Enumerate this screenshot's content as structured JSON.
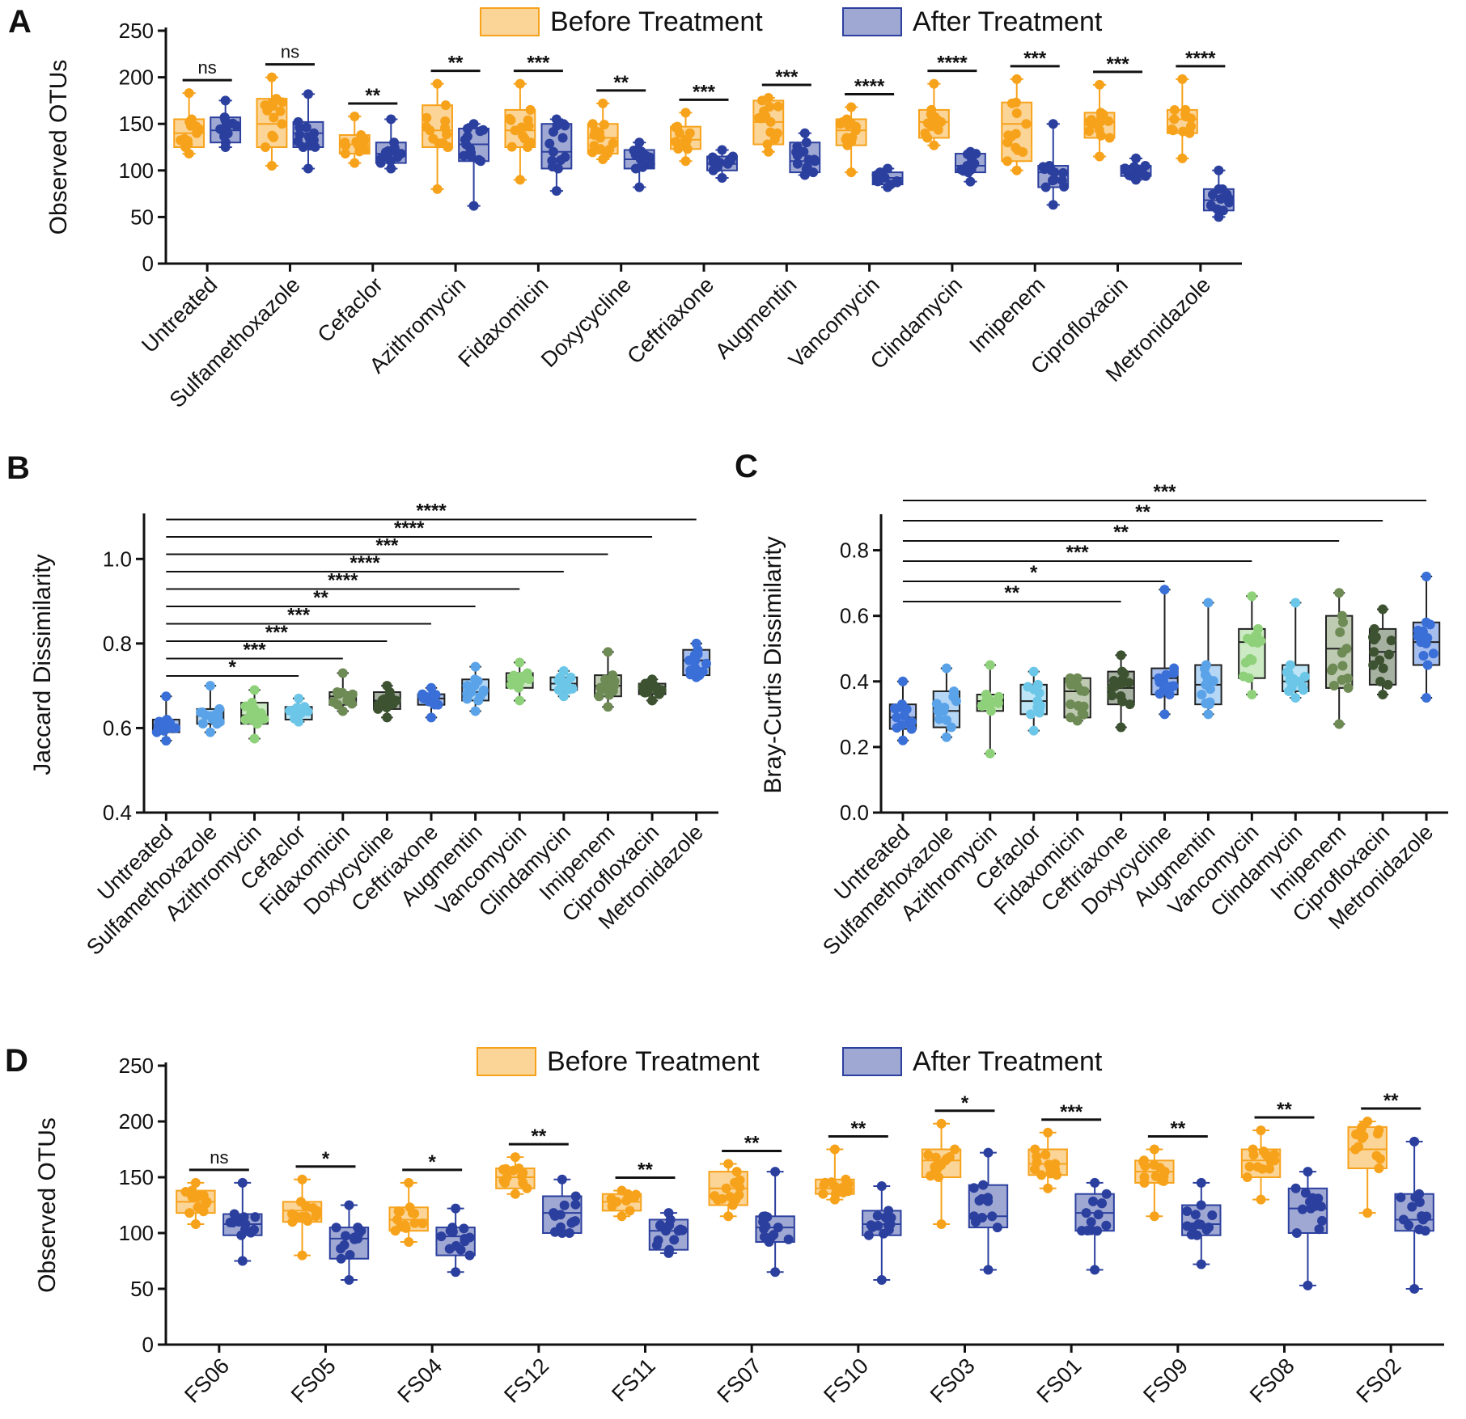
{
  "chart_data": [
    {
      "panel": "A",
      "type": "box",
      "ylabel": "Observed OTUs",
      "ylim": [
        0,
        250
      ],
      "yticks": [
        0,
        50,
        100,
        150,
        200,
        250
      ],
      "legend": {
        "placement": "top",
        "entries": [
          "Before Treatment",
          "After Treatment"
        ]
      },
      "colors": {
        "Before Treatment": "#F7A21B",
        "After Treatment": "#2B3F9E"
      },
      "categories": [
        "Untreated",
        "Sulfamethoxazole",
        "Cefaclor",
        "Azithromycin",
        "Fidaxomicin",
        "Doxycycline",
        "Ceftriaxone",
        "Augmentin",
        "Vancomycin",
        "Clindamycin",
        "Imipenem",
        "Ciprofloxacin",
        "Metronidazole"
      ],
      "significance": [
        "ns",
        "ns",
        "**",
        "**",
        "***",
        "**",
        "***",
        "***",
        "****",
        "****",
        "***",
        "***",
        "****"
      ],
      "series": [
        {
          "name": "Before Treatment",
          "boxes": [
            {
              "min": 118,
              "q1": 125,
              "median": 140,
              "q3": 155,
              "max": 183
            },
            {
              "min": 105,
              "q1": 125,
              "median": 150,
              "q3": 177,
              "max": 200
            },
            {
              "min": 108,
              "q1": 118,
              "median": 128,
              "q3": 138,
              "max": 158
            },
            {
              "min": 80,
              "q1": 125,
              "median": 143,
              "q3": 170,
              "max": 193
            },
            {
              "min": 90,
              "q1": 125,
              "median": 143,
              "q3": 165,
              "max": 193
            },
            {
              "min": 112,
              "q1": 118,
              "median": 135,
              "q3": 150,
              "max": 172
            },
            {
              "min": 110,
              "q1": 123,
              "median": 133,
              "q3": 147,
              "max": 162
            },
            {
              "min": 120,
              "q1": 128,
              "median": 152,
              "q3": 175,
              "max": 178
            },
            {
              "min": 98,
              "q1": 127,
              "median": 143,
              "q3": 155,
              "max": 168
            },
            {
              "min": 127,
              "q1": 135,
              "median": 152,
              "q3": 165,
              "max": 193
            },
            {
              "min": 100,
              "q1": 110,
              "median": 150,
              "q3": 173,
              "max": 198
            },
            {
              "min": 115,
              "q1": 135,
              "median": 152,
              "q3": 162,
              "max": 192
            },
            {
              "min": 113,
              "q1": 140,
              "median": 155,
              "q3": 165,
              "max": 198
            }
          ]
        },
        {
          "name": "After Treatment",
          "boxes": [
            {
              "min": 125,
              "q1": 130,
              "median": 143,
              "q3": 157,
              "max": 175
            },
            {
              "min": 102,
              "q1": 125,
              "median": 140,
              "q3": 152,
              "max": 182
            },
            {
              "min": 102,
              "q1": 108,
              "median": 118,
              "q3": 130,
              "max": 155
            },
            {
              "min": 62,
              "q1": 110,
              "median": 128,
              "q3": 145,
              "max": 150
            },
            {
              "min": 78,
              "q1": 102,
              "median": 120,
              "q3": 150,
              "max": 155
            },
            {
              "min": 82,
              "q1": 102,
              "median": 112,
              "q3": 122,
              "max": 130
            },
            {
              "min": 92,
              "q1": 100,
              "median": 107,
              "q3": 115,
              "max": 122
            },
            {
              "min": 95,
              "q1": 98,
              "median": 110,
              "q3": 130,
              "max": 140
            },
            {
              "min": 82,
              "q1": 85,
              "median": 92,
              "q3": 98,
              "max": 102
            },
            {
              "min": 88,
              "q1": 98,
              "median": 105,
              "q3": 118,
              "max": 120
            },
            {
              "min": 63,
              "q1": 82,
              "median": 98,
              "q3": 105,
              "max": 150
            },
            {
              "min": 90,
              "q1": 94,
              "median": 97,
              "q3": 105,
              "max": 113
            },
            {
              "min": 50,
              "q1": 57,
              "median": 68,
              "q3": 80,
              "max": 100
            }
          ]
        }
      ]
    },
    {
      "panel": "B",
      "type": "box",
      "ylabel": "Jaccard Dissimilarity",
      "ylim": [
        0.4,
        1.1
      ],
      "yticks": [
        0.4,
        0.6,
        0.8,
        1.0
      ],
      "ytick_labels": [
        "0.4",
        "0.6",
        "0.8",
        "1.0"
      ],
      "categories": [
        "Untreated",
        "Sulfamethoxazole",
        "Azithromycin",
        "Cefaclor",
        "Fidaxomicin",
        "Doxycycline",
        "Ceftriaxone",
        "Augmentin",
        "Vancomycin",
        "Clindamycin",
        "Imipenem",
        "Ciprofloxacin",
        "Metronidazole"
      ],
      "colors": [
        "#3A6FD8",
        "#5BA3E8",
        "#8FD17A",
        "#6CC6E8",
        "#6E8A55",
        "#3C5230",
        "#3A6FD8",
        "#5BA3E8",
        "#8FD17A",
        "#6CC6E8",
        "#6E8A55",
        "#3C5230",
        "#3A6FD8"
      ],
      "boxes": [
        {
          "min": 0.57,
          "q1": 0.59,
          "median": 0.605,
          "q3": 0.62,
          "max": 0.675
        },
        {
          "min": 0.59,
          "q1": 0.61,
          "median": 0.63,
          "q3": 0.645,
          "max": 0.7
        },
        {
          "min": 0.575,
          "q1": 0.61,
          "median": 0.63,
          "q3": 0.66,
          "max": 0.69
        },
        {
          "min": 0.615,
          "q1": 0.62,
          "median": 0.635,
          "q3": 0.65,
          "max": 0.67
        },
        {
          "min": 0.64,
          "q1": 0.655,
          "median": 0.675,
          "q3": 0.685,
          "max": 0.73
        },
        {
          "min": 0.625,
          "q1": 0.645,
          "median": 0.665,
          "q3": 0.685,
          "max": 0.7
        },
        {
          "min": 0.625,
          "q1": 0.655,
          "median": 0.67,
          "q3": 0.68,
          "max": 0.695
        },
        {
          "min": 0.64,
          "q1": 0.665,
          "median": 0.685,
          "q3": 0.715,
          "max": 0.745
        },
        {
          "min": 0.665,
          "q1": 0.695,
          "median": 0.71,
          "q3": 0.73,
          "max": 0.755
        },
        {
          "min": 0.675,
          "q1": 0.69,
          "median": 0.705,
          "q3": 0.72,
          "max": 0.735
        },
        {
          "min": 0.65,
          "q1": 0.675,
          "median": 0.7,
          "q3": 0.725,
          "max": 0.78
        },
        {
          "min": 0.665,
          "q1": 0.68,
          "median": 0.69,
          "q3": 0.705,
          "max": 0.715
        },
        {
          "min": 0.72,
          "q1": 0.725,
          "median": 0.76,
          "q3": 0.785,
          "max": 0.8
        }
      ],
      "comparisons": [
        {
          "from": "Untreated",
          "to": "Cefaclor",
          "label": "*"
        },
        {
          "from": "Untreated",
          "to": "Fidaxomicin",
          "label": "***"
        },
        {
          "from": "Untreated",
          "to": "Doxycycline",
          "label": "***"
        },
        {
          "from": "Untreated",
          "to": "Ceftriaxone",
          "label": "***"
        },
        {
          "from": "Untreated",
          "to": "Augmentin",
          "label": "**"
        },
        {
          "from": "Untreated",
          "to": "Vancomycin",
          "label": "****"
        },
        {
          "from": "Untreated",
          "to": "Clindamycin",
          "label": "****"
        },
        {
          "from": "Untreated",
          "to": "Imipenem",
          "label": "***"
        },
        {
          "from": "Untreated",
          "to": "Ciprofloxacin",
          "label": "****"
        },
        {
          "from": "Untreated",
          "to": "Metronidazole",
          "label": "****"
        }
      ]
    },
    {
      "panel": "C",
      "type": "box",
      "ylabel": "Bray-Curtis Dissimilarity",
      "ylim": [
        0,
        0.9
      ],
      "yticks": [
        0,
        0.2,
        0.4,
        0.6,
        0.8
      ],
      "ytick_labels": [
        "0.0",
        "0.2",
        "0.4",
        "0.6",
        "0.8"
      ],
      "categories": [
        "Untreated",
        "Sulfamethoxazole",
        "Azithromycin",
        "Cefaclor",
        "Fidaxomicin",
        "Ceftriaxone",
        "Doxycycline",
        "Augmentin",
        "Vancomycin",
        "Clindamycin",
        "Imipenem",
        "Ciprofloxacin",
        "Metronidazole"
      ],
      "colors": [
        "#3A6FD8",
        "#5BA3E8",
        "#8FD17A",
        "#6CC6E8",
        "#6E8A55",
        "#3C5230",
        "#3A6FD8",
        "#5BA3E8",
        "#8FD17A",
        "#6CC6E8",
        "#6E8A55",
        "#3C5230",
        "#3A6FD8"
      ],
      "boxes": [
        {
          "min": 0.22,
          "q1": 0.255,
          "median": 0.29,
          "q3": 0.33,
          "max": 0.4
        },
        {
          "min": 0.23,
          "q1": 0.26,
          "median": 0.31,
          "q3": 0.37,
          "max": 0.44
        },
        {
          "min": 0.18,
          "q1": 0.31,
          "median": 0.34,
          "q3": 0.36,
          "max": 0.45
        },
        {
          "min": 0.25,
          "q1": 0.3,
          "median": 0.34,
          "q3": 0.39,
          "max": 0.43
        },
        {
          "min": 0.28,
          "q1": 0.29,
          "median": 0.37,
          "q3": 0.41,
          "max": 0.41
        },
        {
          "min": 0.26,
          "q1": 0.33,
          "median": 0.38,
          "q3": 0.43,
          "max": 0.48
        },
        {
          "min": 0.3,
          "q1": 0.36,
          "median": 0.41,
          "q3": 0.44,
          "max": 0.68
        },
        {
          "min": 0.3,
          "q1": 0.33,
          "median": 0.39,
          "q3": 0.45,
          "max": 0.64
        },
        {
          "min": 0.36,
          "q1": 0.41,
          "median": 0.52,
          "q3": 0.56,
          "max": 0.66
        },
        {
          "min": 0.35,
          "q1": 0.37,
          "median": 0.4,
          "q3": 0.45,
          "max": 0.64
        },
        {
          "min": 0.27,
          "q1": 0.38,
          "median": 0.5,
          "q3": 0.6,
          "max": 0.67
        },
        {
          "min": 0.36,
          "q1": 0.39,
          "median": 0.49,
          "q3": 0.56,
          "max": 0.62
        },
        {
          "min": 0.35,
          "q1": 0.45,
          "median": 0.52,
          "q3": 0.58,
          "max": 0.72
        }
      ],
      "comparisons": [
        {
          "from": "Untreated",
          "to": "Ceftriaxone",
          "label": "**"
        },
        {
          "from": "Untreated",
          "to": "Doxycycline",
          "label": "*"
        },
        {
          "from": "Untreated",
          "to": "Vancomycin",
          "label": "***"
        },
        {
          "from": "Untreated",
          "to": "Imipenem",
          "label": "**"
        },
        {
          "from": "Untreated",
          "to": "Ciprofloxacin",
          "label": "**"
        },
        {
          "from": "Untreated",
          "to": "Metronidazole",
          "label": "***"
        }
      ]
    },
    {
      "panel": "D",
      "type": "box",
      "ylabel": "Observed OTUs",
      "ylim": [
        0,
        250
      ],
      "yticks": [
        0,
        50,
        100,
        150,
        200,
        250
      ],
      "legend": {
        "placement": "top",
        "entries": [
          "Before Treatment",
          "After Treatment"
        ]
      },
      "colors": {
        "Before Treatment": "#F7A21B",
        "After Treatment": "#2B3F9E"
      },
      "categories": [
        "FS06",
        "FS05",
        "FS04",
        "FS12",
        "FS11",
        "FS07",
        "FS10",
        "FS03",
        "FS01",
        "FS09",
        "FS08",
        "FS02"
      ],
      "significance": [
        "ns",
        "*",
        "*",
        "**",
        "**",
        "**",
        "**",
        "*",
        "***",
        "**",
        "**",
        "**"
      ],
      "series": [
        {
          "name": "Before Treatment",
          "boxes": [
            {
              "min": 108,
              "q1": 118,
              "median": 128,
              "q3": 138,
              "max": 145
            },
            {
              "min": 80,
              "q1": 110,
              "median": 120,
              "q3": 128,
              "max": 148
            },
            {
              "min": 92,
              "q1": 102,
              "median": 112,
              "q3": 123,
              "max": 145
            },
            {
              "min": 135,
              "q1": 140,
              "median": 150,
              "q3": 158,
              "max": 168
            },
            {
              "min": 115,
              "q1": 120,
              "median": 128,
              "q3": 135,
              "max": 138
            },
            {
              "min": 115,
              "q1": 125,
              "median": 140,
              "q3": 155,
              "max": 162
            },
            {
              "min": 130,
              "q1": 135,
              "median": 140,
              "q3": 148,
              "max": 175
            },
            {
              "min": 108,
              "q1": 150,
              "median": 165,
              "q3": 175,
              "max": 198
            },
            {
              "min": 140,
              "q1": 152,
              "median": 162,
              "q3": 175,
              "max": 190
            },
            {
              "min": 115,
              "q1": 145,
              "median": 155,
              "q3": 165,
              "max": 175
            },
            {
              "min": 130,
              "q1": 150,
              "median": 165,
              "q3": 175,
              "max": 192
            },
            {
              "min": 118,
              "q1": 158,
              "median": 175,
              "q3": 195,
              "max": 200
            }
          ]
        },
        {
          "name": "After Treatment",
          "boxes": [
            {
              "min": 75,
              "q1": 98,
              "median": 108,
              "q3": 117,
              "max": 145
            },
            {
              "min": 58,
              "q1": 77,
              "median": 95,
              "q3": 105,
              "max": 125
            },
            {
              "min": 65,
              "q1": 80,
              "median": 97,
              "q3": 105,
              "max": 122
            },
            {
              "min": 100,
              "q1": 100,
              "median": 118,
              "q3": 133,
              "max": 148
            },
            {
              "min": 82,
              "q1": 85,
              "median": 102,
              "q3": 112,
              "max": 118
            },
            {
              "min": 65,
              "q1": 92,
              "median": 105,
              "q3": 115,
              "max": 155
            },
            {
              "min": 58,
              "q1": 98,
              "median": 108,
              "q3": 120,
              "max": 142
            },
            {
              "min": 67,
              "q1": 105,
              "median": 115,
              "q3": 143,
              "max": 172
            },
            {
              "min": 67,
              "q1": 102,
              "median": 118,
              "q3": 135,
              "max": 145
            },
            {
              "min": 72,
              "q1": 98,
              "median": 108,
              "q3": 125,
              "max": 145
            },
            {
              "min": 53,
              "q1": 100,
              "median": 122,
              "q3": 140,
              "max": 155
            },
            {
              "min": 50,
              "q1": 102,
              "median": 112,
              "q3": 135,
              "max": 182
            }
          ]
        }
      ]
    }
  ]
}
